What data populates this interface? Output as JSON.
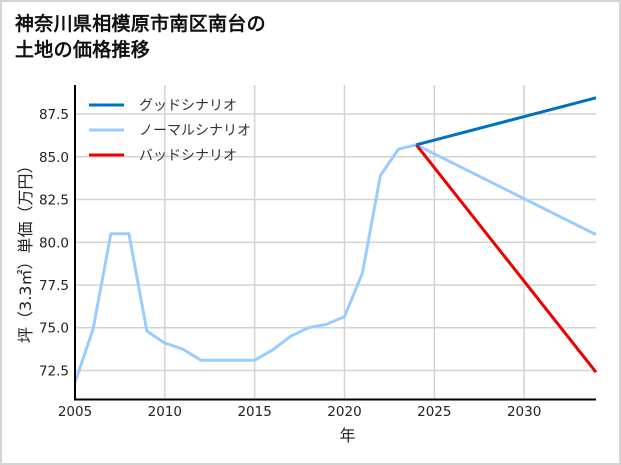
{
  "title_lines": [
    "神奈川県相模原市南区南台の",
    "土地の価格推移"
  ],
  "chart_data": {
    "type": "line",
    "title": "神奈川県相模原市南区南台の土地の価格推移",
    "xlabel": "年",
    "ylabel": "坪（3.3㎡）単価（万円）",
    "xlim": [
      2005,
      2034
    ],
    "ylim": [
      70.8,
      89.2
    ],
    "x_ticks": [
      2005,
      2010,
      2015,
      2020,
      2025,
      2030
    ],
    "x_tick_labels": [
      "2005",
      "2010",
      "2015",
      "2020",
      "2025",
      "2030"
    ],
    "y_ticks": [
      72.5,
      75.0,
      77.5,
      80.0,
      82.5,
      85.0,
      87.5
    ],
    "y_tick_labels": [
      "72.5",
      "75.0",
      "77.5",
      "80.0",
      "82.5",
      "85.0",
      "87.5"
    ],
    "grid": true,
    "legend_position": "upper left",
    "series": [
      {
        "name": "グッドシナリオ",
        "color": "#0070c0",
        "x": [
          2024,
          2034
        ],
        "values": [
          85.7,
          88.45
        ]
      },
      {
        "name": "ノーマルシナリオ",
        "color": "#99ccff",
        "x": [
          2005,
          2006,
          2007,
          2008,
          2009,
          2010,
          2011,
          2012,
          2013,
          2014,
          2015,
          2016,
          2017,
          2018,
          2019,
          2020,
          2021,
          2022,
          2023,
          2024,
          2034
        ],
        "values": [
          71.8,
          74.9,
          80.5,
          80.5,
          74.8,
          74.1,
          73.75,
          73.1,
          73.1,
          73.1,
          73.1,
          73.7,
          74.5,
          75.0,
          75.2,
          75.65,
          78.2,
          83.9,
          85.45,
          85.7,
          80.45
        ]
      },
      {
        "name": "バッドシナリオ",
        "color": "#ee0000",
        "x": [
          2024,
          2034
        ],
        "values": [
          85.7,
          72.4
        ]
      }
    ]
  }
}
